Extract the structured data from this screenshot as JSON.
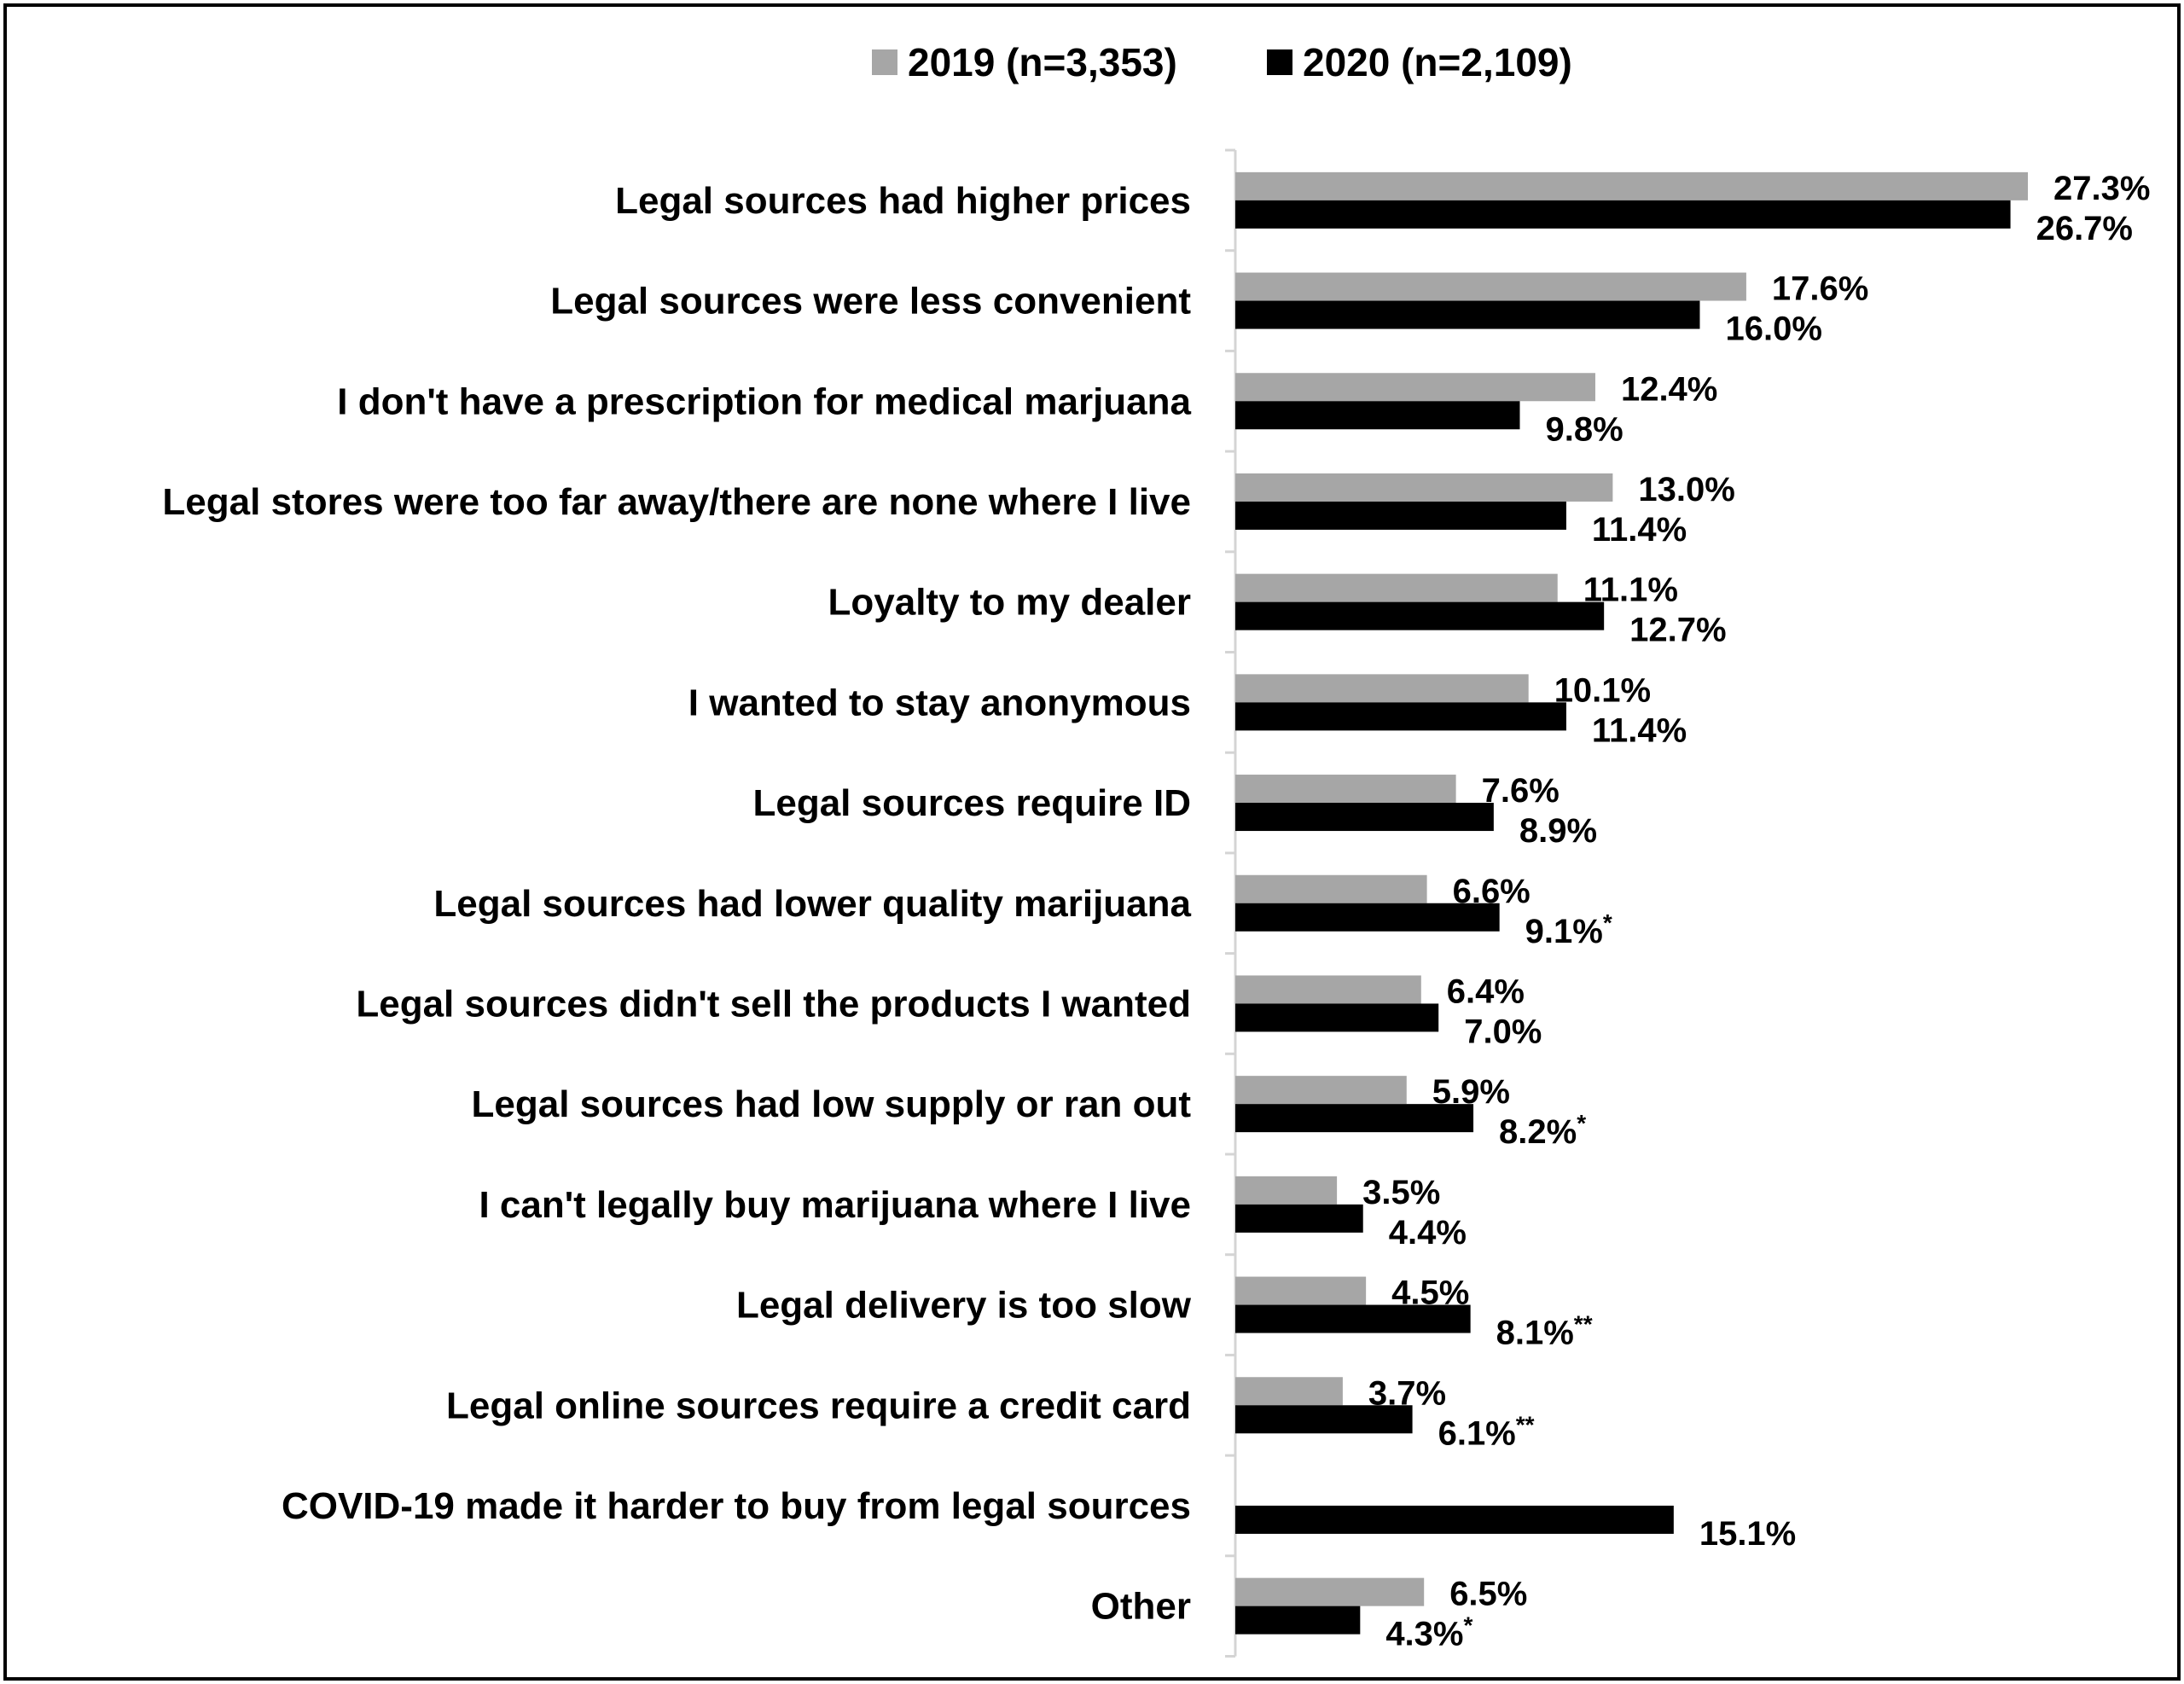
{
  "chart_data": {
    "type": "bar",
    "orientation": "horizontal",
    "legend_position": "top",
    "grid": false,
    "xlim": [
      0,
      27.3
    ],
    "categories": [
      "Legal sources had higher prices",
      "Legal sources were less convenient",
      "I don't have a prescription for medical marjuana",
      "Legal stores were too far away/there are none where I live",
      "Loyalty to my dealer",
      "I wanted to stay anonymous",
      "Legal sources require ID",
      "Legal sources had lower quality marijuana",
      "Legal sources didn't sell the products I wanted",
      "Legal sources had low supply or ran out",
      "I can't legally buy marijuana where I live",
      "Legal delivery is too slow",
      "Legal online sources require a credit card",
      "COVID-19 made it harder to buy from legal sources",
      "Other"
    ],
    "series": [
      {
        "name": "2019 (n=3,353)",
        "color": "#a6a6a6",
        "values": [
          27.3,
          17.6,
          12.4,
          13.0,
          11.1,
          10.1,
          7.6,
          6.6,
          6.4,
          5.9,
          3.5,
          4.5,
          3.7,
          null,
          6.5
        ],
        "labels": [
          "27.3%",
          "17.6%",
          "12.4%",
          "13.0%",
          "11.1%",
          "10.1%",
          "7.6%",
          "6.6%",
          "6.4%",
          "5.9%",
          "3.5%",
          "4.5%",
          "3.7%",
          "",
          "6.5%"
        ],
        "markers": [
          "",
          "",
          "",
          "",
          "",
          "",
          "",
          "",
          "",
          "",
          "",
          "",
          "",
          "",
          ""
        ]
      },
      {
        "name": "2020 (n=2,109)",
        "color": "#000000",
        "values": [
          26.7,
          16.0,
          9.8,
          11.4,
          12.7,
          11.4,
          8.9,
          9.1,
          7.0,
          8.2,
          4.4,
          8.1,
          6.1,
          15.1,
          4.3
        ],
        "labels": [
          "26.7%",
          "16.0%",
          "9.8%",
          "11.4%",
          "12.7%",
          "11.4%",
          "8.9%",
          "9.1%",
          "7.0%",
          "8.2%",
          "4.4%",
          "8.1%",
          "6.1%",
          "15.1%",
          "4.3%"
        ],
        "markers": [
          "",
          "",
          "",
          "",
          "",
          "",
          "",
          "*",
          "",
          "*",
          "",
          "**",
          "**",
          "",
          "*"
        ]
      }
    ]
  }
}
